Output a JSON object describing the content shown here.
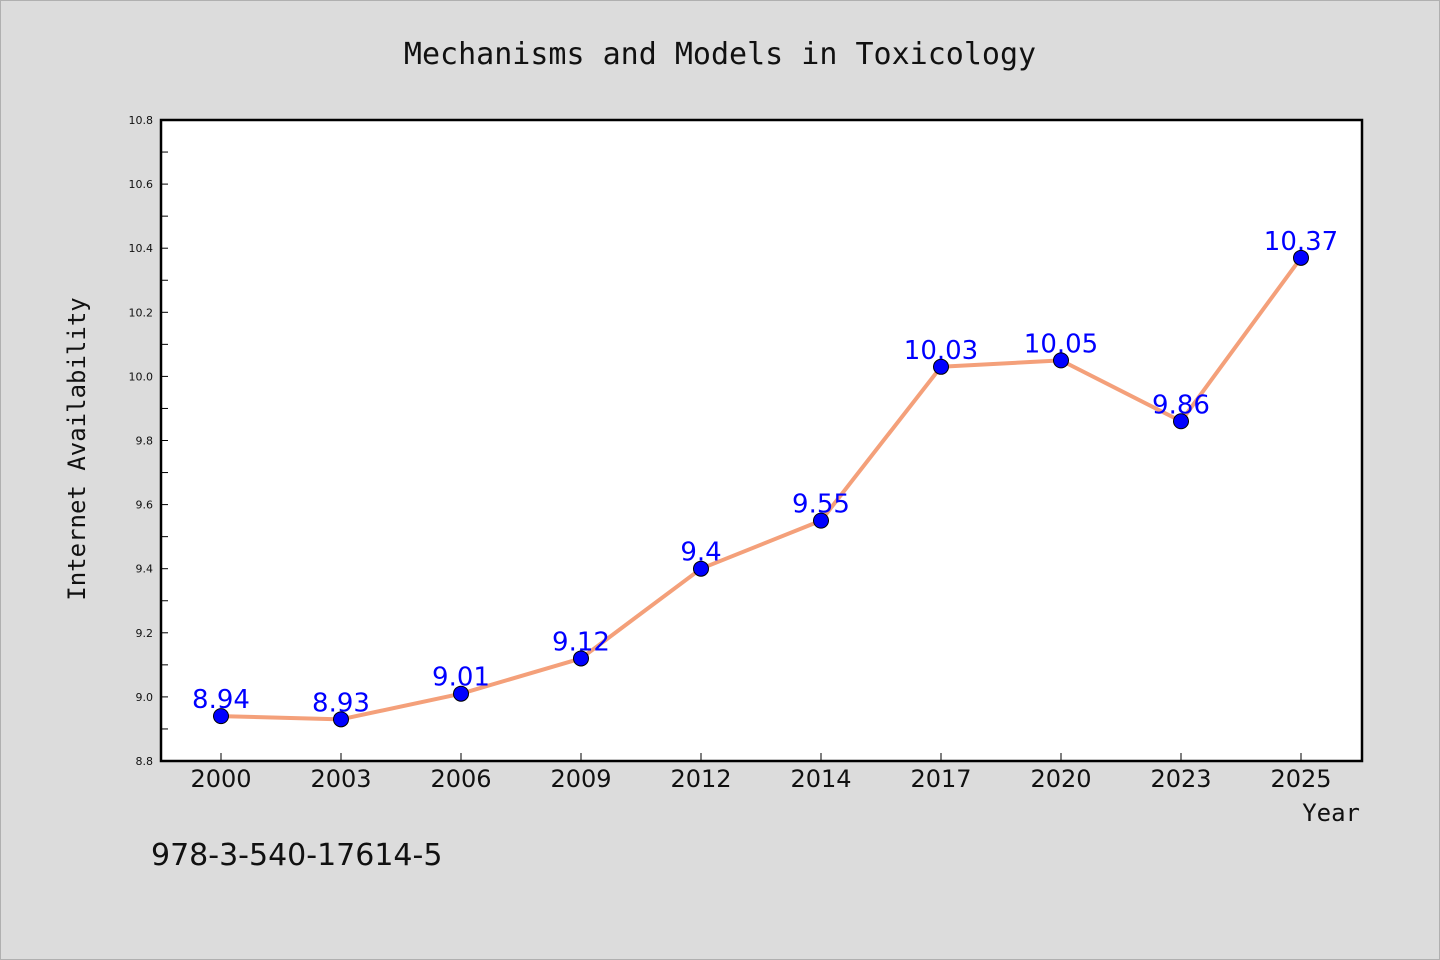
{
  "chart_data": {
    "type": "line",
    "title": "Mechanisms and Models in Toxicology",
    "xlabel": "Year",
    "ylabel": "Internet Availability",
    "categories": [
      "2000",
      "2003",
      "2006",
      "2009",
      "2012",
      "2014",
      "2017",
      "2020",
      "2023",
      "2025"
    ],
    "series": [
      {
        "values": [
          8.94,
          8.93,
          9.01,
          9.12,
          9.4,
          9.55,
          10.03,
          10.05,
          9.86,
          10.37
        ],
        "data_labels": [
          "8.94",
          "8.93",
          "9.01",
          "9.12",
          "9.4",
          "9.55",
          "10.03",
          "10.05",
          "9.86",
          "10.37"
        ]
      }
    ],
    "ylim": [
      8.8,
      10.8
    ],
    "yticks": [
      "8.8",
      "9.0",
      "9.2",
      "9.4",
      "9.6",
      "9.8",
      "10.0",
      "10.2",
      "10.4",
      "10.6",
      "10.8"
    ],
    "grid": false,
    "line_color": "#f4a07a",
    "marker_color": "#0000ff",
    "label_color": "#0000ff"
  },
  "footnote": "978-3-540-17614-5"
}
